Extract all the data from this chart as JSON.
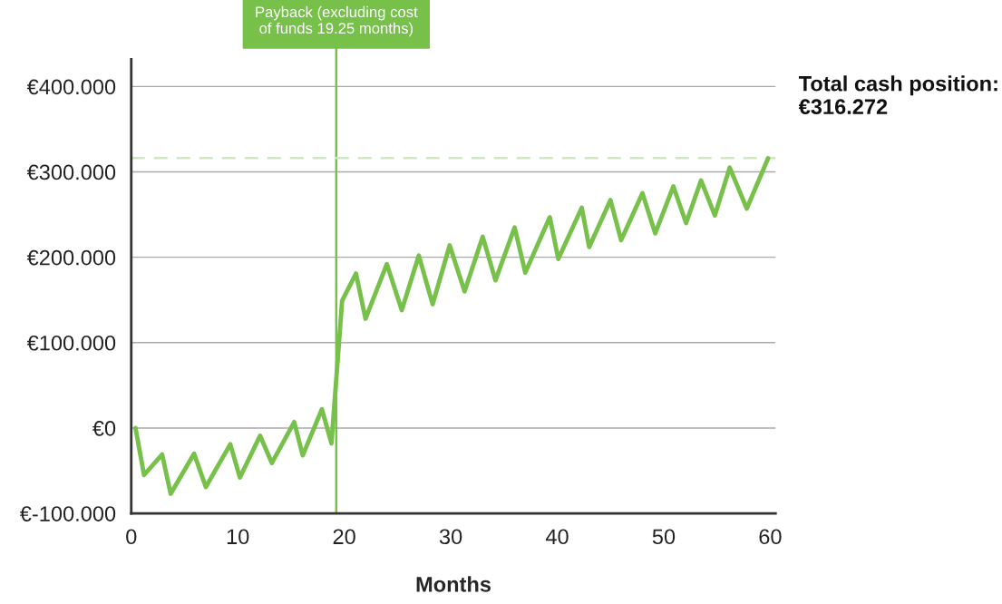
{
  "chart_data": {
    "type": "line",
    "xlabel": "Months",
    "x": [
      0.4,
      1.2,
      2.9,
      3.7,
      5.9,
      7.0,
      9.3,
      10.2,
      12.1,
      13.2,
      15.3,
      16.1,
      17.9,
      18.8,
      19.8,
      21.1,
      22.0,
      24.0,
      25.4,
      27.0,
      28.3,
      29.9,
      31.3,
      33.0,
      34.2,
      36.0,
      37.0,
      39.3,
      40.1,
      42.3,
      43.0,
      45.0,
      46.0,
      48.0,
      49.2,
      50.9,
      52.1,
      53.5,
      54.8,
      56.2,
      57.8,
      59.8
    ],
    "series": [
      {
        "color": "#77c14b",
        "values": [
          0,
          -55,
          -31,
          -77,
          -30,
          -69,
          -19,
          -58,
          -9,
          -41,
          7,
          -32,
          22,
          -18,
          149,
          181,
          128,
          192,
          138,
          202,
          145,
          214,
          160,
          224,
          173,
          235,
          182,
          247,
          198,
          258,
          212,
          267,
          220,
          275,
          228,
          283,
          240,
          290,
          249,
          305,
          257,
          316
        ]
      }
    ],
    "xlim": [
      0,
      60.5
    ],
    "ylim": [
      -100,
      432
    ],
    "xticks": [
      0,
      10,
      20,
      30,
      40,
      50,
      60
    ],
    "yticks": [
      {
        "value": -100,
        "label": "€-100.000"
      },
      {
        "value": 0,
        "label": "€0"
      },
      {
        "value": 100,
        "label": "€100.000"
      },
      {
        "value": 200,
        "label": "€200.000"
      },
      {
        "value": 300,
        "label": "€300.000"
      },
      {
        "value": 400,
        "label": "€400.000"
      }
    ],
    "grid": "y",
    "marker": "none",
    "line_style": "solid",
    "ref_lines": [
      {
        "axis": "x",
        "value": 19.25,
        "label": "Payback (excluding cost\nof funds 19.25 months)",
        "color": "#77c14b",
        "line_style": "solid"
      },
      {
        "axis": "y",
        "value": 316.272,
        "color": "#cfe8bf",
        "line_style": "dashed"
      }
    ],
    "annotations": [
      "Total cash position:\n€316.272"
    ]
  }
}
